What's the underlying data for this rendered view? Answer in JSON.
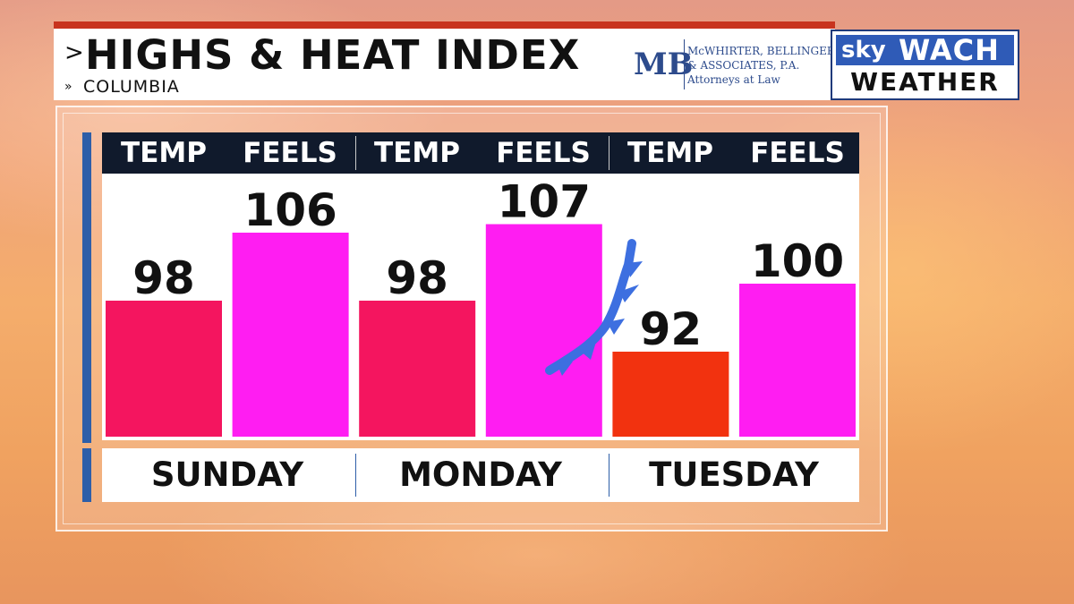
{
  "header": {
    "title": "HIGHS & HEAT INDEX",
    "title_arrow": ">",
    "subtitle": "COLUMBIA",
    "subtitle_arrow": "»"
  },
  "sponsor": {
    "monogram": "MB",
    "line1": "McWHIRTER, BELLINGER",
    "line2": "& ASSOCIATES, P.A.",
    "line3": "Attorneys at Law"
  },
  "logo": {
    "sky": "sky",
    "wach": "WACH",
    "weather": "WEATHER"
  },
  "colors": {
    "temp": "#f4155f",
    "feels": "#ff1df2",
    "cooler": "#f2320f",
    "front": "#3d6fe0"
  },
  "chart_data": {
    "type": "bar",
    "column_headers": [
      "TEMP",
      "FEELS",
      "TEMP",
      "FEELS",
      "TEMP",
      "FEELS"
    ],
    "days": [
      "SUNDAY",
      "MONDAY",
      "TUESDAY"
    ],
    "values": [
      98,
      106,
      98,
      107,
      92,
      100
    ],
    "series_of_bar": [
      "TEMP",
      "FEELS",
      "TEMP",
      "FEELS",
      "TEMP",
      "FEELS"
    ],
    "front_icon": "cold-front-icon"
  }
}
